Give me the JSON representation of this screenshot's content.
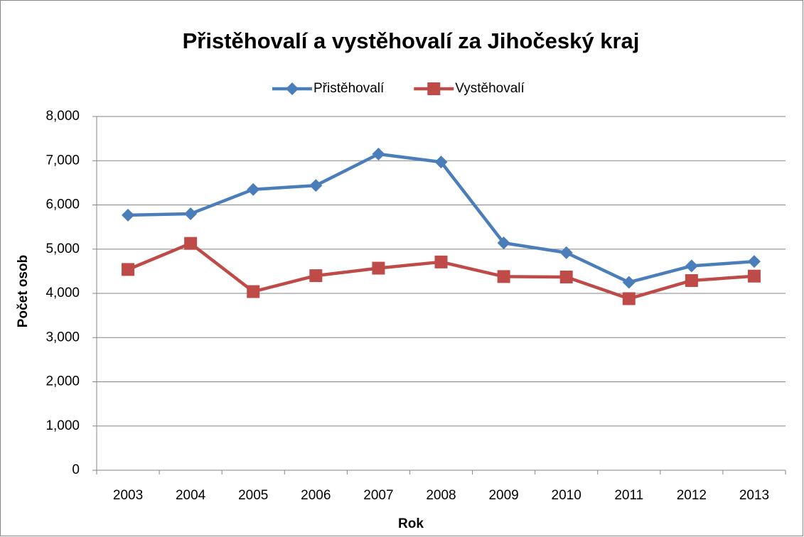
{
  "chart_data": {
    "type": "line",
    "title": "Přistěhovalí a vystěhovalí za Jihočeský kraj",
    "x_label": "Rok",
    "y_label": "Počet osob",
    "categories": [
      "2003",
      "2004",
      "2005",
      "2006",
      "2007",
      "2008",
      "2009",
      "2010",
      "2011",
      "2012",
      "2013"
    ],
    "series": [
      {
        "name": "Přistěhovalí",
        "color": "#4a7ebb",
        "marker": "diamond",
        "values": [
          5770,
          5800,
          6350,
          6440,
          7150,
          6970,
          5140,
          4920,
          4250,
          4620,
          4720
        ]
      },
      {
        "name": "Vystěhovalí",
        "color": "#be4b48",
        "marker": "square",
        "values": [
          4540,
          5130,
          4040,
          4400,
          4570,
          4710,
          4380,
          4370,
          3880,
          4290,
          4390
        ]
      }
    ],
    "ylim": [
      0,
      8000
    ],
    "yticks": [
      0,
      {
        "value": 1000,
        "label": "1,000"
      },
      {
        "value": 2000,
        "label": "2,000"
      },
      {
        "value": 3000,
        "label": "3,000"
      },
      {
        "value": 4000,
        "label": "4,000"
      },
      {
        "value": 5000,
        "label": "5,000"
      },
      {
        "value": 6000,
        "label": "6,000"
      },
      {
        "value": 7000,
        "label": "7,000"
      },
      {
        "value": 8000,
        "label": "8,000"
      }
    ],
    "grid": true,
    "legend": "top"
  }
}
